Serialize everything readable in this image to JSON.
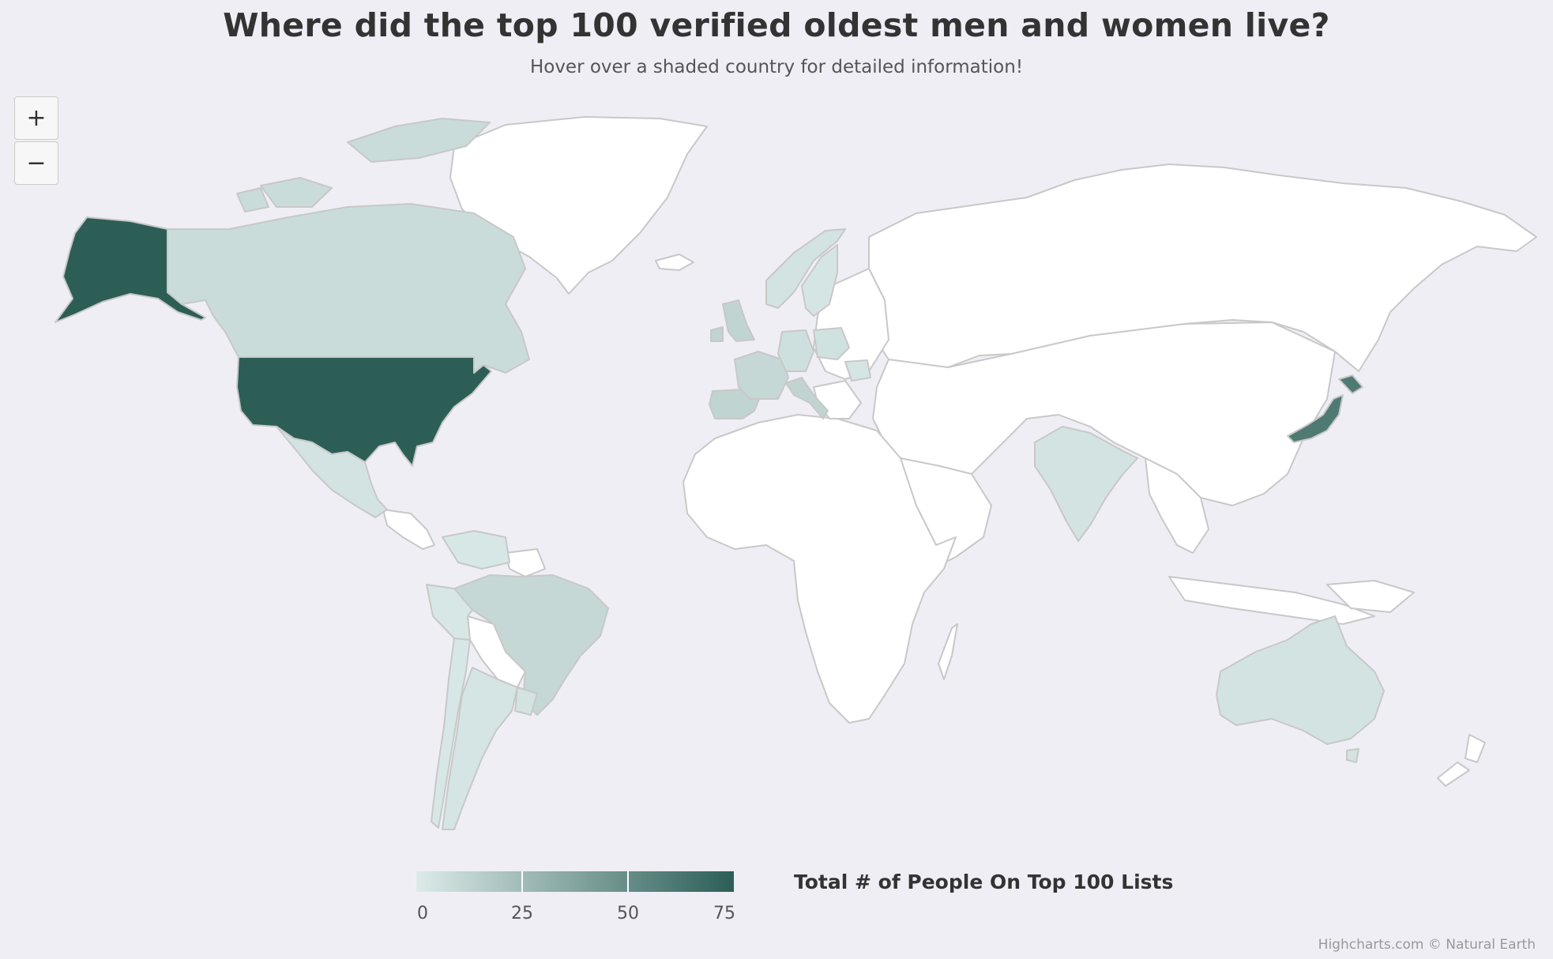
{
  "title": "Where did the top 100 verified oldest men and women live?",
  "subtitle": "Hover over a shaded country for detailed information!",
  "zoom": {
    "in_label": "+",
    "out_label": "−"
  },
  "legend": {
    "title": "Total # of People On Top 100 Lists",
    "ticks": [
      "0",
      "25",
      "50",
      "75"
    ],
    "min": 0,
    "max": 75,
    "color_min": "#dcebe9",
    "color_max": "#2c5e56"
  },
  "credits": "Highcharts.com © Natural Earth",
  "colors": {
    "background": "#efeef5",
    "no_data": "#ffffff",
    "border": "#c8c8c8"
  },
  "chart_data": {
    "type": "choropleth",
    "title": "Where did the top 100 verified oldest men and women live?",
    "color_axis": {
      "min": 0,
      "max": 75,
      "ticks": [
        0,
        25,
        50,
        75
      ]
    },
    "countries": [
      {
        "name": "United States",
        "value": 75
      },
      {
        "name": "Japan",
        "value": 60
      },
      {
        "name": "Canada",
        "value": 8
      },
      {
        "name": "Mexico",
        "value": 4
      },
      {
        "name": "Brazil",
        "value": 10
      },
      {
        "name": "Argentina",
        "value": 3
      },
      {
        "name": "Chile",
        "value": 2
      },
      {
        "name": "Uruguay",
        "value": 4
      },
      {
        "name": "Venezuela",
        "value": 2
      },
      {
        "name": "Peru",
        "value": 2
      },
      {
        "name": "United Kingdom",
        "value": 12
      },
      {
        "name": "Spain",
        "value": 12
      },
      {
        "name": "France",
        "value": 10
      },
      {
        "name": "Italy",
        "value": 12
      },
      {
        "name": "Germany",
        "value": 6
      },
      {
        "name": "Poland",
        "value": 5
      },
      {
        "name": "Norway",
        "value": 4
      },
      {
        "name": "Sweden",
        "value": 3
      },
      {
        "name": "Romania",
        "value": 3
      },
      {
        "name": "India",
        "value": 4
      },
      {
        "name": "Australia",
        "value": 4
      }
    ]
  }
}
